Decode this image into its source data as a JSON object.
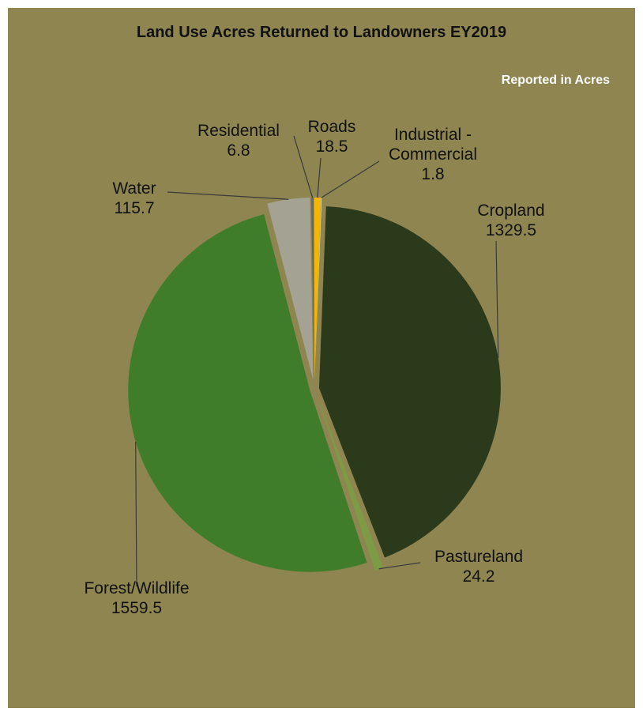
{
  "chart_data": {
    "type": "pie",
    "title": "Land Use Acres Returned to Landowners  EY2019",
    "subtitle": "Reported in Acres",
    "categories": [
      "Industrial - Commercial",
      "Cropland",
      "Pastureland",
      "Forest/Wildlife",
      "Water",
      "Residential",
      "Roads"
    ],
    "values": [
      1.8,
      1329.5,
      24.2,
      1559.5,
      115.7,
      6.8,
      18.5
    ],
    "colors": [
      "#e6dfb0",
      "#2c3a1c",
      "#7d9a45",
      "#3f7d2b",
      "#a3a293",
      "#6f6651",
      "#f2b705"
    ]
  }
}
